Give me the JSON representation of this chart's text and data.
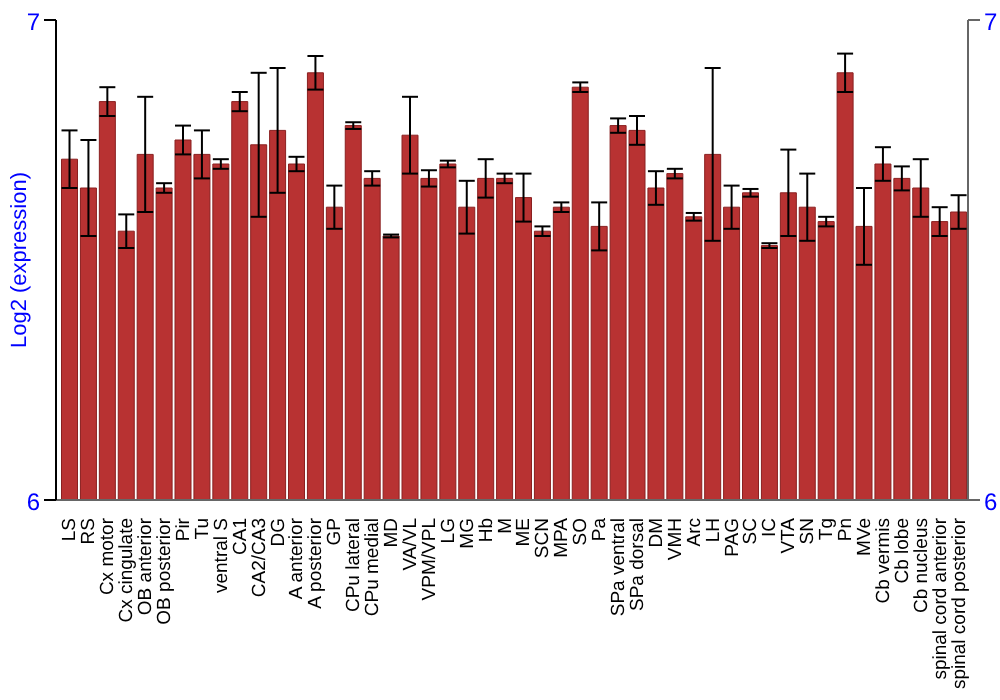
{
  "chart_data": {
    "type": "bar",
    "ylabel": "Log2 (expression)",
    "categories": [
      "LS",
      "RS",
      "Cx motor",
      "Cx cingulate",
      "OB anterior",
      "OB posterior",
      "Pir",
      "Tu",
      "ventral S",
      "CA1",
      "CA2/CA3",
      "DG",
      "A anterior",
      "A posterior",
      "GP",
      "CPu lateral",
      "CPu medial",
      "MD",
      "VA/VL",
      "VPM/VPL",
      "LG",
      "MG",
      "Hb",
      "M",
      "ME",
      "SCN",
      "MPA",
      "SO",
      "Pa",
      "SPa ventral",
      "SPa dorsal",
      "DM",
      "VMH",
      "Arc",
      "LH",
      "PAG",
      "SC",
      "IC",
      "VTA",
      "SN",
      "Tg",
      "Pn",
      "MVe",
      "Cb vermis",
      "Cb lobe",
      "Cb nucleus",
      "spinal cord anterior",
      "spinal cord posterior"
    ],
    "values": [
      6.71,
      6.65,
      6.83,
      6.56,
      6.72,
      6.65,
      6.75,
      6.72,
      6.7,
      6.83,
      6.74,
      6.77,
      6.7,
      6.89,
      6.61,
      6.78,
      6.67,
      6.55,
      6.76,
      6.67,
      6.7,
      6.61,
      6.67,
      6.67,
      6.63,
      6.56,
      6.61,
      6.86,
      6.57,
      6.78,
      6.77,
      6.65,
      6.68,
      6.59,
      6.72,
      6.61,
      6.64,
      6.53,
      6.64,
      6.61,
      6.58,
      6.89,
      6.57,
      6.7,
      6.67,
      6.65,
      6.58,
      6.6
    ],
    "errors": [
      0.06,
      0.1,
      0.03,
      0.035,
      0.12,
      0.01,
      0.03,
      0.05,
      0.01,
      0.02,
      0.15,
      0.13,
      0.015,
      0.035,
      0.045,
      0.007,
      0.015,
      0.003,
      0.08,
      0.017,
      0.007,
      0.055,
      0.04,
      0.01,
      0.05,
      0.01,
      0.01,
      0.01,
      0.05,
      0.015,
      0.03,
      0.035,
      0.01,
      0.008,
      0.18,
      0.045,
      0.008,
      0.005,
      0.09,
      0.07,
      0.01,
      0.04,
      0.08,
      0.035,
      0.025,
      0.06,
      0.03,
      0.035
    ],
    "color": "#b83232",
    "ylim": [
      6,
      7
    ],
    "yticks": [
      6,
      7
    ],
    "y2lim": [
      6,
      7
    ],
    "y2ticks": [
      6,
      7
    ],
    "grid": false
  }
}
